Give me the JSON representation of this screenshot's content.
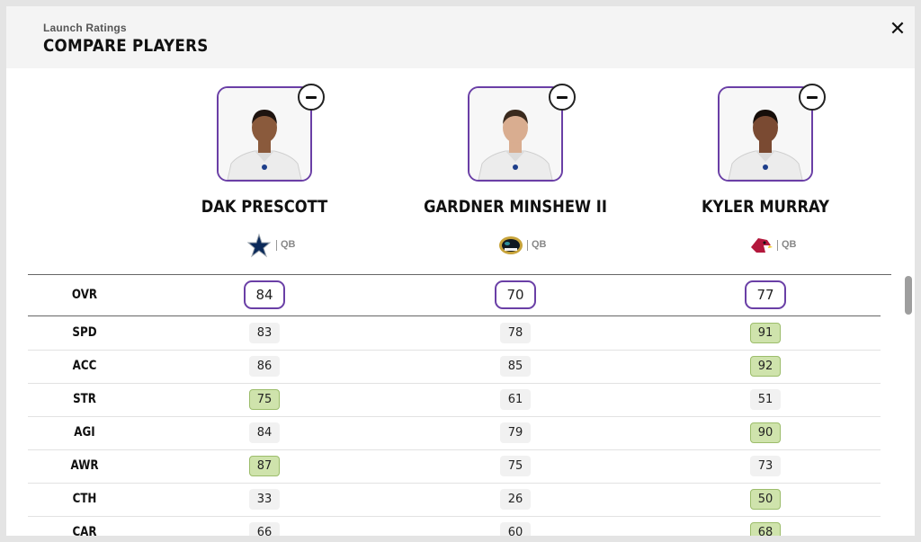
{
  "header": {
    "subtitle": "Launch Ratings",
    "title": "COMPARE PLAYERS",
    "close_label": "✕"
  },
  "players": [
    {
      "name": "DAK PRESCOTT",
      "team_icon": "cowboys-star-icon",
      "position": "QB",
      "skin": "#8a5a3c",
      "hair": "#1e1410"
    },
    {
      "name": "GARDNER MINSHEW II",
      "team_icon": "jaguars-logo-icon",
      "position": "QB",
      "skin": "#d9ad90",
      "hair": "#3a2a1e"
    },
    {
      "name": "KYLER MURRAY",
      "team_icon": "cardinals-logo-icon",
      "position": "QB",
      "skin": "#7a4a32",
      "hair": "#160e0a"
    }
  ],
  "ovr": {
    "label": "OVR",
    "values": [
      "84",
      "70",
      "77"
    ]
  },
  "stats": [
    {
      "label": "SPD",
      "values": [
        "83",
        "78",
        "91"
      ],
      "highlight": [
        false,
        false,
        true
      ]
    },
    {
      "label": "ACC",
      "values": [
        "86",
        "85",
        "92"
      ],
      "highlight": [
        false,
        false,
        true
      ]
    },
    {
      "label": "STR",
      "values": [
        "75",
        "61",
        "51"
      ],
      "highlight": [
        true,
        false,
        false
      ]
    },
    {
      "label": "AGI",
      "values": [
        "84",
        "79",
        "90"
      ],
      "highlight": [
        false,
        false,
        true
      ]
    },
    {
      "label": "AWR",
      "values": [
        "87",
        "75",
        "73"
      ],
      "highlight": [
        true,
        false,
        false
      ]
    },
    {
      "label": "CTH",
      "values": [
        "33",
        "26",
        "50"
      ],
      "highlight": [
        false,
        false,
        true
      ]
    },
    {
      "label": "CAR",
      "values": [
        "66",
        "60",
        "68"
      ],
      "highlight": [
        false,
        false,
        true
      ]
    }
  ],
  "colors": {
    "accent": "#6a3fa6",
    "highlight": "#cfe3ac",
    "value_bg": "#f1f1f1"
  }
}
